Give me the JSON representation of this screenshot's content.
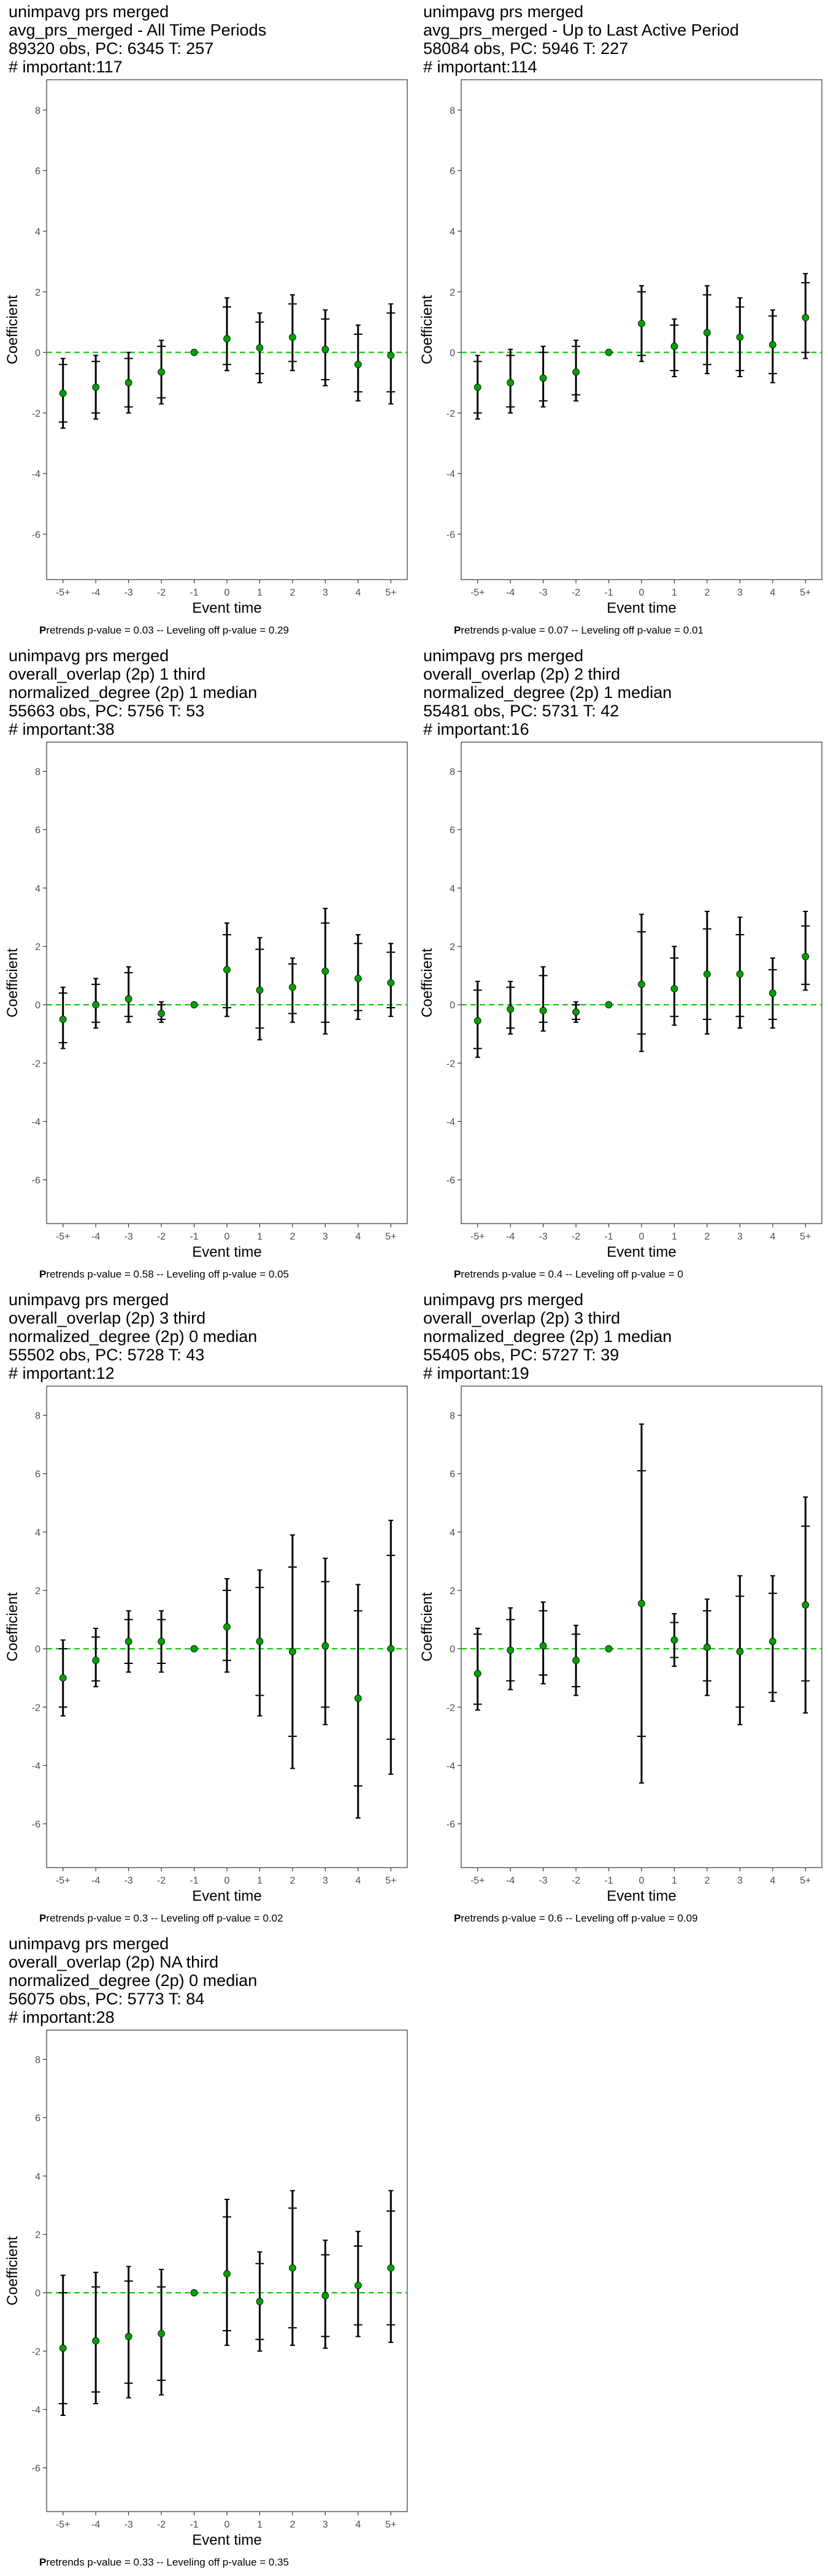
{
  "chart_data": [
    {
      "type": "scatter",
      "title_lines": [
        " unimpavg prs merged",
        "avg_prs_merged - All Time Periods",
        "89320 obs, PC: 6345 T: 257",
        "# important:117"
      ],
      "xlabel": "Event time",
      "ylabel": "Coefficient",
      "categories": [
        "-5+",
        "-4",
        "-3",
        "-2",
        "-1",
        "0",
        "1",
        "2",
        "3",
        "4",
        "5+"
      ],
      "ylim": [
        -7.5,
        9
      ],
      "yticks": [
        -6,
        -4,
        -2,
        0,
        2,
        4,
        6,
        8
      ],
      "reference_line": 0,
      "reference_color": "#00cc00",
      "point_color": "#00a000",
      "values": [
        -1.35,
        -1.15,
        -1.0,
        -0.65,
        0.0,
        0.45,
        0.15,
        0.5,
        0.1,
        -0.4,
        -0.1
      ],
      "ci_outer": [
        [
          -2.5,
          -0.2
        ],
        [
          -2.2,
          -0.1
        ],
        [
          -2.0,
          0.0
        ],
        [
          -1.7,
          0.4
        ],
        [
          0,
          0
        ],
        [
          -0.6,
          1.8
        ],
        [
          -1.0,
          1.3
        ],
        [
          -0.6,
          1.9
        ],
        [
          -1.1,
          1.4
        ],
        [
          -1.6,
          0.9
        ],
        [
          -1.7,
          1.6
        ]
      ],
      "ci_inner": [
        [
          -2.3,
          -0.4
        ],
        [
          -2.0,
          -0.3
        ],
        [
          -1.8,
          -0.2
        ],
        [
          -1.5,
          0.2
        ],
        [
          0,
          0
        ],
        [
          -0.4,
          1.5
        ],
        [
          -0.7,
          1.0
        ],
        [
          -0.3,
          1.6
        ],
        [
          -0.9,
          1.1
        ],
        [
          -1.3,
          0.6
        ],
        [
          -1.3,
          1.3
        ]
      ],
      "caption_bold": "P",
      "caption": "retrends p-value = 0.03 -- Leveling off p-value = 0.29"
    },
    {
      "type": "scatter",
      "title_lines": [
        " unimpavg prs merged",
        "avg_prs_merged - Up to Last Active Period",
        "58084 obs, PC: 5946 T: 227",
        "# important:114"
      ],
      "xlabel": "Event time",
      "ylabel": "Coefficient",
      "categories": [
        "-5+",
        "-4",
        "-3",
        "-2",
        "-1",
        "0",
        "1",
        "2",
        "3",
        "4",
        "5+"
      ],
      "ylim": [
        -7.5,
        9
      ],
      "yticks": [
        -6,
        -4,
        -2,
        0,
        2,
        4,
        6,
        8
      ],
      "reference_line": 0,
      "reference_color": "#00cc00",
      "point_color": "#00a000",
      "values": [
        -1.15,
        -1.0,
        -0.85,
        -0.65,
        0.0,
        0.95,
        0.2,
        0.65,
        0.5,
        0.25,
        1.15
      ],
      "ci_outer": [
        [
          -2.2,
          -0.1
        ],
        [
          -2.0,
          0.1
        ],
        [
          -1.8,
          0.2
        ],
        [
          -1.6,
          0.4
        ],
        [
          0,
          0
        ],
        [
          -0.3,
          2.2
        ],
        [
          -0.8,
          1.1
        ],
        [
          -0.7,
          2.2
        ],
        [
          -0.8,
          1.8
        ],
        [
          -1.0,
          1.4
        ],
        [
          -0.2,
          2.6
        ]
      ],
      "ci_inner": [
        [
          -2.0,
          -0.3
        ],
        [
          -1.8,
          -0.1
        ],
        [
          -1.6,
          0.0
        ],
        [
          -1.4,
          0.2
        ],
        [
          0,
          0
        ],
        [
          -0.1,
          2.0
        ],
        [
          -0.6,
          0.9
        ],
        [
          -0.4,
          1.9
        ],
        [
          -0.6,
          1.5
        ],
        [
          -0.7,
          1.2
        ],
        [
          0.0,
          2.3
        ]
      ],
      "caption_bold": "P",
      "caption": "retrends p-value = 0.07 -- Leveling off p-value = 0.01"
    },
    {
      "type": "scatter",
      "title_lines": [
        " unimpavg prs merged",
        "overall_overlap (2p) 1 third",
        "normalized_degree (2p) 1 median",
        "55663 obs, PC: 5756 T: 53",
        "# important:38"
      ],
      "xlabel": "Event time",
      "ylabel": "Coefficient",
      "categories": [
        "-5+",
        "-4",
        "-3",
        "-2",
        "-1",
        "0",
        "1",
        "2",
        "3",
        "4",
        "5+"
      ],
      "ylim": [
        -7.5,
        9
      ],
      "yticks": [
        -6,
        -4,
        -2,
        0,
        2,
        4,
        6,
        8
      ],
      "reference_line": 0,
      "reference_color": "#00cc00",
      "point_color": "#00a000",
      "values": [
        -0.5,
        0.0,
        0.2,
        -0.3,
        0.0,
        1.2,
        0.5,
        0.6,
        1.15,
        0.9,
        0.75
      ],
      "ci_outer": [
        [
          -1.5,
          0.6
        ],
        [
          -0.8,
          0.9
        ],
        [
          -0.6,
          1.3
        ],
        [
          -0.6,
          0.1
        ],
        [
          0,
          0
        ],
        [
          -0.4,
          2.8
        ],
        [
          -1.2,
          2.3
        ],
        [
          -0.6,
          1.6
        ],
        [
          -1.0,
          3.3
        ],
        [
          -0.5,
          2.4
        ],
        [
          -0.4,
          2.1
        ]
      ],
      "ci_inner": [
        [
          -1.3,
          0.4
        ],
        [
          -0.6,
          0.7
        ],
        [
          -0.4,
          1.1
        ],
        [
          -0.5,
          0.0
        ],
        [
          0,
          0
        ],
        [
          -0.1,
          2.4
        ],
        [
          -0.8,
          1.9
        ],
        [
          -0.3,
          1.4
        ],
        [
          -0.6,
          2.8
        ],
        [
          -0.2,
          2.1
        ],
        [
          -0.1,
          1.8
        ]
      ],
      "caption_bold": "P",
      "caption": "retrends p-value = 0.58 -- Leveling off p-value = 0.05"
    },
    {
      "type": "scatter",
      "title_lines": [
        " unimpavg prs merged",
        "overall_overlap (2p) 2 third",
        "normalized_degree (2p) 1 median",
        "55481 obs, PC: 5731 T: 42",
        "# important:16"
      ],
      "xlabel": "Event time",
      "ylabel": "Coefficient",
      "categories": [
        "-5+",
        "-4",
        "-3",
        "-2",
        "-1",
        "0",
        "1",
        "2",
        "3",
        "4",
        "5+"
      ],
      "ylim": [
        -7.5,
        9
      ],
      "yticks": [
        -6,
        -4,
        -2,
        0,
        2,
        4,
        6,
        8
      ],
      "reference_line": 0,
      "reference_color": "#00cc00",
      "point_color": "#00a000",
      "values": [
        -0.55,
        -0.15,
        -0.2,
        -0.25,
        0.0,
        0.7,
        0.55,
        1.05,
        1.05,
        0.4,
        1.65
      ],
      "ci_outer": [
        [
          -1.8,
          0.8
        ],
        [
          -1.0,
          0.8
        ],
        [
          -0.9,
          1.3
        ],
        [
          -0.6,
          0.1
        ],
        [
          0,
          0
        ],
        [
          -1.6,
          3.1
        ],
        [
          -0.7,
          2.0
        ],
        [
          -1.0,
          3.2
        ],
        [
          -0.8,
          3.0
        ],
        [
          -0.8,
          1.6
        ],
        [
          0.5,
          3.2
        ]
      ],
      "ci_inner": [
        [
          -1.5,
          0.5
        ],
        [
          -0.8,
          0.6
        ],
        [
          -0.6,
          1.0
        ],
        [
          -0.5,
          0.0
        ],
        [
          0,
          0
        ],
        [
          -1.0,
          2.5
        ],
        [
          -0.4,
          1.6
        ],
        [
          -0.5,
          2.6
        ],
        [
          -0.4,
          2.4
        ],
        [
          -0.5,
          1.2
        ],
        [
          0.7,
          2.7
        ]
      ],
      "caption_bold": "P",
      "caption": "retrends p-value = 0.4 -- Leveling off p-value = 0"
    },
    {
      "type": "scatter",
      "title_lines": [
        " unimpavg prs merged",
        "overall_overlap (2p) 3 third",
        "normalized_degree (2p) 0 median",
        "55502 obs, PC: 5728 T: 43",
        "# important:12"
      ],
      "xlabel": "Event time",
      "ylabel": "Coefficient",
      "categories": [
        "-5+",
        "-4",
        "-3",
        "-2",
        "-1",
        "0",
        "1",
        "2",
        "3",
        "4",
        "5+"
      ],
      "ylim": [
        -7.5,
        9
      ],
      "yticks": [
        -6,
        -4,
        -2,
        0,
        2,
        4,
        6,
        8
      ],
      "reference_line": 0,
      "reference_color": "#00cc00",
      "point_color": "#00a000",
      "values": [
        -1.0,
        -0.4,
        0.25,
        0.25,
        0.0,
        0.75,
        0.25,
        -0.1,
        0.1,
        -1.7,
        0.0
      ],
      "ci_outer": [
        [
          -2.3,
          0.3
        ],
        [
          -1.3,
          0.7
        ],
        [
          -0.8,
          1.3
        ],
        [
          -0.8,
          1.3
        ],
        [
          0,
          0
        ],
        [
          -0.8,
          2.4
        ],
        [
          -2.3,
          2.7
        ],
        [
          -4.1,
          3.9
        ],
        [
          -2.6,
          3.1
        ],
        [
          -5.8,
          2.2
        ],
        [
          -4.3,
          4.4
        ]
      ],
      "ci_inner": [
        [
          -2.0,
          0.0
        ],
        [
          -1.1,
          0.4
        ],
        [
          -0.5,
          1.0
        ],
        [
          -0.5,
          1.0
        ],
        [
          0,
          0
        ],
        [
          -0.4,
          2.0
        ],
        [
          -1.6,
          2.1
        ],
        [
          -3.0,
          2.8
        ],
        [
          -2.0,
          2.3
        ],
        [
          -4.7,
          1.3
        ],
        [
          -3.1,
          3.2
        ]
      ],
      "caption_bold": "P",
      "caption": "retrends p-value = 0.3 -- Leveling off p-value = 0.02"
    },
    {
      "type": "scatter",
      "title_lines": [
        " unimpavg prs merged",
        "overall_overlap (2p) 3 third",
        "normalized_degree (2p) 1 median",
        "55405 obs, PC: 5727 T: 39",
        "# important:19"
      ],
      "xlabel": "Event time",
      "ylabel": "Coefficient",
      "categories": [
        "-5+",
        "-4",
        "-3",
        "-2",
        "-1",
        "0",
        "1",
        "2",
        "3",
        "4",
        "5+"
      ],
      "ylim": [
        -7.5,
        9
      ],
      "yticks": [
        -6,
        -4,
        -2,
        0,
        2,
        4,
        6,
        8
      ],
      "reference_line": 0,
      "reference_color": "#00cc00",
      "point_color": "#00a000",
      "values": [
        -0.85,
        -0.05,
        0.1,
        -0.4,
        0.0,
        1.55,
        0.3,
        0.05,
        -0.1,
        0.25,
        1.5
      ],
      "ci_outer": [
        [
          -2.1,
          0.7
        ],
        [
          -1.4,
          1.4
        ],
        [
          -1.2,
          1.6
        ],
        [
          -1.6,
          0.8
        ],
        [
          0,
          0
        ],
        [
          -4.6,
          7.7
        ],
        [
          -0.6,
          1.2
        ],
        [
          -1.6,
          1.7
        ],
        [
          -2.6,
          2.5
        ],
        [
          -1.8,
          2.5
        ],
        [
          -2.2,
          5.2
        ]
      ],
      "ci_inner": [
        [
          -1.9,
          0.5
        ],
        [
          -1.1,
          1.0
        ],
        [
          -0.9,
          1.3
        ],
        [
          -1.3,
          0.5
        ],
        [
          0,
          0
        ],
        [
          -3.0,
          6.1
        ],
        [
          -0.3,
          0.9
        ],
        [
          -1.1,
          1.3
        ],
        [
          -2.0,
          1.8
        ],
        [
          -1.5,
          1.9
        ],
        [
          -1.1,
          4.2
        ]
      ],
      "caption_bold": "P",
      "caption": "retrends p-value = 0.6 -- Leveling off p-value = 0.09"
    },
    {
      "type": "scatter",
      "title_lines": [
        " unimpavg prs merged",
        "overall_overlap (2p) NA third",
        "normalized_degree (2p) 0 median",
        "56075 obs, PC: 5773 T: 84",
        "# important:28"
      ],
      "xlabel": "Event time",
      "ylabel": "Coefficient",
      "categories": [
        "-5+",
        "-4",
        "-3",
        "-2",
        "-1",
        "0",
        "1",
        "2",
        "3",
        "4",
        "5+"
      ],
      "ylim": [
        -7.5,
        9
      ],
      "yticks": [
        -6,
        -4,
        -2,
        0,
        2,
        4,
        6,
        8
      ],
      "reference_line": 0,
      "reference_color": "#00cc00",
      "point_color": "#00a000",
      "values": [
        -1.9,
        -1.65,
        -1.5,
        -1.4,
        0.0,
        0.65,
        -0.3,
        0.85,
        -0.1,
        0.25,
        0.85
      ],
      "ci_outer": [
        [
          -4.2,
          0.6
        ],
        [
          -3.8,
          0.7
        ],
        [
          -3.6,
          0.9
        ],
        [
          -3.5,
          0.8
        ],
        [
          0,
          0
        ],
        [
          -1.8,
          3.2
        ],
        [
          -2.0,
          1.4
        ],
        [
          -1.8,
          3.5
        ],
        [
          -1.9,
          1.8
        ],
        [
          -1.5,
          2.1
        ],
        [
          -1.7,
          3.5
        ]
      ],
      "ci_inner": [
        [
          -3.8,
          0.0
        ],
        [
          -3.4,
          0.2
        ],
        [
          -3.1,
          0.4
        ],
        [
          -3.0,
          0.2
        ],
        [
          0,
          0
        ],
        [
          -1.3,
          2.6
        ],
        [
          -1.6,
          1.0
        ],
        [
          -1.2,
          2.9
        ],
        [
          -1.5,
          1.3
        ],
        [
          -1.1,
          1.6
        ],
        [
          -1.1,
          2.8
        ]
      ],
      "caption_bold": "P",
      "caption": "retrends p-value = 0.33 -- Leveling off p-value = 0.35"
    }
  ]
}
